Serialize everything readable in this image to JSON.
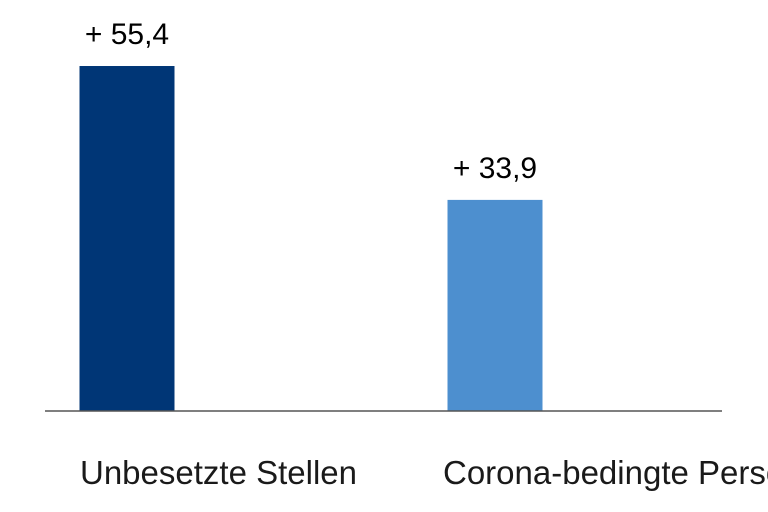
{
  "chart_data": {
    "type": "bar",
    "categories": [
      "Unbesetzte Stellen",
      "Corona-bedingte Personalausfälle"
    ],
    "category_display": [
      "Unbesetzte Stellen",
      "Corona-bedingte Personalausfälle"
    ],
    "values": [
      55.4,
      33.9
    ],
    "value_labels": [
      "+ 55,4",
      "+ 33,9"
    ],
    "colors": [
      "#003676",
      "#4d8fcf"
    ],
    "axis_color": "#555555",
    "ylim": [
      0,
      66
    ],
    "title": "",
    "xlabel": "",
    "ylabel": "",
    "grid": false,
    "legend": "none"
  }
}
